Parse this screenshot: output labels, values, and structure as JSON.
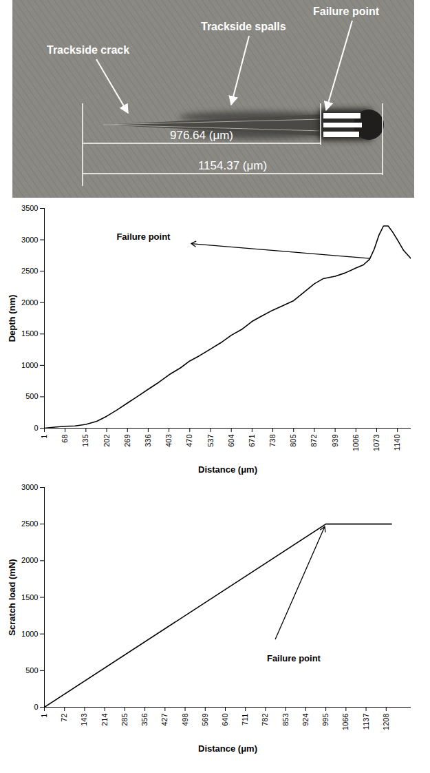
{
  "micrograph": {
    "labels": [
      "Trackside crack",
      "Trackside spalls",
      "Failure point"
    ],
    "measurements": [
      "976.64 (μm)",
      "1154.37 (μm)"
    ]
  },
  "chart_data": [
    {
      "type": "line",
      "xlabel": "Distance (μm)",
      "ylabel": "Depth (nm)",
      "color": "#000000",
      "x": [
        1,
        40,
        68,
        100,
        135,
        170,
        202,
        235,
        269,
        300,
        336,
        370,
        403,
        440,
        470,
        500,
        537,
        570,
        604,
        640,
        671,
        700,
        738,
        770,
        805,
        840,
        872,
        900,
        939,
        970,
        1006,
        1030,
        1050,
        1065,
        1080,
        1095,
        1110,
        1125,
        1140,
        1160,
        1184
      ],
      "values": [
        0,
        20,
        30,
        35,
        60,
        110,
        190,
        290,
        400,
        500,
        620,
        730,
        850,
        960,
        1070,
        1150,
        1260,
        1360,
        1480,
        1580,
        1700,
        1780,
        1880,
        1950,
        2030,
        2170,
        2300,
        2380,
        2420,
        2470,
        2550,
        2600,
        2690,
        2850,
        3070,
        3220,
        3220,
        3120,
        3000,
        2830,
        2700
      ],
      "xlim": [
        1,
        1184
      ],
      "xticks": [
        1,
        68,
        135,
        202,
        269,
        336,
        403,
        470,
        537,
        604,
        671,
        738,
        805,
        872,
        939,
        1006,
        1073,
        1140
      ],
      "ylim": [
        0,
        3500
      ],
      "yticks": [
        0,
        500,
        1000,
        1500,
        2000,
        2500,
        3000,
        3500
      ],
      "annotation": {
        "text": "Failure point",
        "x": 1060,
        "y": 2700
      }
    },
    {
      "type": "line",
      "xlabel": "Distance (μm)",
      "ylabel": "Scratch load (mN)",
      "color": "#000000",
      "x": [
        1,
        995,
        1227
      ],
      "values": [
        0,
        2500,
        2500
      ],
      "xlim": [
        1,
        1296
      ],
      "xticks": [
        1,
        72,
        143,
        214,
        285,
        356,
        427,
        498,
        569,
        640,
        711,
        782,
        853,
        924,
        995,
        1066,
        1137,
        1208
      ],
      "ylim": [
        0,
        3000
      ],
      "yticks": [
        0,
        500,
        1000,
        1500,
        2000,
        2500,
        3000
      ],
      "annotation": {
        "text": "Failure point",
        "x": 995,
        "y": 2500
      }
    }
  ]
}
